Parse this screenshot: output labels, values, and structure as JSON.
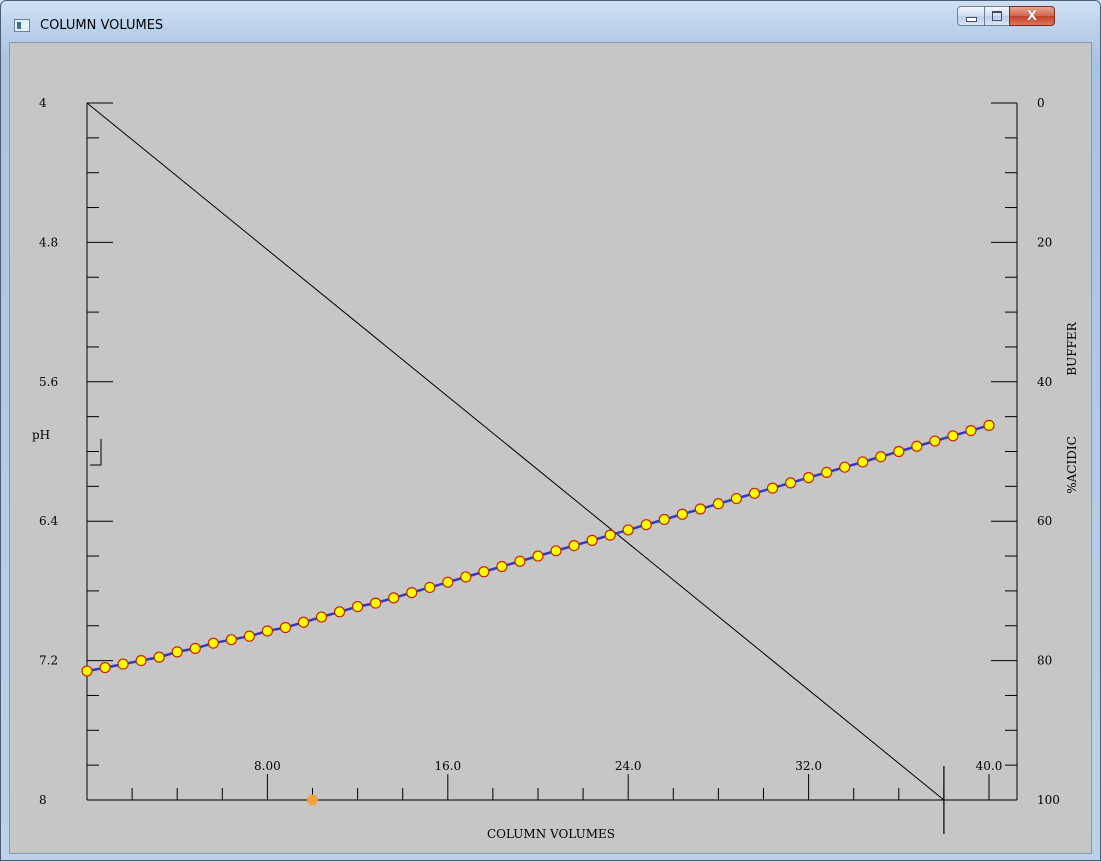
{
  "window": {
    "title": "COLUMN VOLUMES",
    "minimize_icon": "minimize-icon",
    "maximize_icon": "maximize-icon",
    "close_icon": "close-icon"
  },
  "chart_data": {
    "type": "line",
    "xlabel": "COLUMN VOLUMES",
    "ylabel_left": "pH",
    "ylabel_right_lines": [
      "BUFFER",
      "%ACIDIC"
    ],
    "xlim": [
      0,
      40
    ],
    "x_ticks": [
      8,
      16,
      24,
      32,
      40
    ],
    "x_tick_labels": [
      "8.00",
      "16.0",
      "24.0",
      "32.0",
      "40.0"
    ],
    "left_axis": {
      "range_top": 4,
      "range_bottom": 8,
      "tick_values": [
        4,
        4.8,
        5.6,
        6.4,
        7.2,
        8
      ],
      "tick_labels": [
        "4",
        "4.8",
        "5.6",
        "6.4",
        "7.2",
        "8"
      ]
    },
    "right_axis": {
      "range_top": 0,
      "range_bottom": 100,
      "tick_values": [
        0,
        20,
        40,
        60,
        80,
        100
      ],
      "tick_labels": [
        "0",
        "20",
        "40",
        "60",
        "80",
        "100"
      ]
    },
    "series": [
      {
        "axis": "left",
        "color": "#2e3cc8",
        "marker_fill": "#ffff00",
        "marker_edge": "#cc2200",
        "x": [
          0,
          0.8,
          1.6,
          2.4,
          3.2,
          4.0,
          4.8,
          5.6,
          6.4,
          7.2,
          8.0,
          8.8,
          9.6,
          10.4,
          11.2,
          12.0,
          12.8,
          13.6,
          14.4,
          15.2,
          16.0,
          16.8,
          17.6,
          18.4,
          19.2,
          20.0,
          20.8,
          21.6,
          22.4,
          23.2,
          24.0,
          24.8,
          25.6,
          26.4,
          27.2,
          28.0,
          28.8,
          29.6,
          30.4,
          31.2,
          32.0,
          32.8,
          33.6,
          34.4,
          35.2,
          36.0,
          36.8,
          37.6,
          38.4,
          39.2,
          40.0
        ],
        "y": [
          7.26,
          7.24,
          7.22,
          7.2,
          7.18,
          7.15,
          7.13,
          7.1,
          7.08,
          7.06,
          7.03,
          7.01,
          6.98,
          6.95,
          6.92,
          6.89,
          6.87,
          6.84,
          6.81,
          6.78,
          6.75,
          6.72,
          6.69,
          6.66,
          6.63,
          6.6,
          6.57,
          6.54,
          6.51,
          6.48,
          6.45,
          6.42,
          6.39,
          6.36,
          6.33,
          6.3,
          6.27,
          6.24,
          6.21,
          6.18,
          6.15,
          6.12,
          6.09,
          6.06,
          6.03,
          6.0,
          5.97,
          5.94,
          5.91,
          5.88,
          5.85
        ]
      },
      {
        "axis": "right",
        "color": "#000000",
        "x": [
          0,
          38
        ],
        "y": [
          0,
          100
        ]
      }
    ],
    "cursor_x": 38,
    "marker_x": 10,
    "marker_color": "#f5a040"
  }
}
